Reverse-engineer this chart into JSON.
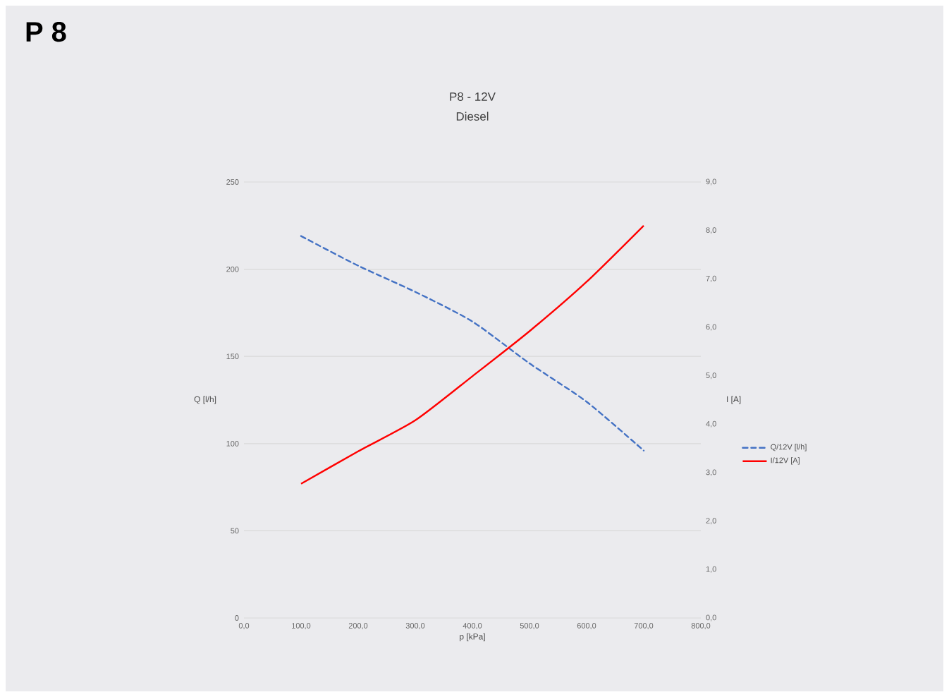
{
  "chart_data": {
    "type": "line",
    "title": "P8 - 12V",
    "subtitle": "Diesel",
    "annotations": [
      "P 8"
    ],
    "xlabel": "p [kPa]",
    "ylabel": "Q [l/h]",
    "y2label": "I [A]",
    "x": [
      100,
      200,
      300,
      400,
      500,
      600,
      700
    ],
    "series": [
      {
        "name": "Q/12V [l/h]",
        "color": "#4472c4",
        "line_style": "dashed",
        "values": [
          219,
          202,
          187,
          170,
          146,
          124,
          96
        ]
      },
      {
        "name": "I/12V [A]",
        "color": "#ff0000",
        "line_style": "solid",
        "axis": "y2",
        "values": [
          2.77,
          3.44,
          4.08,
          4.99,
          5.92,
          6.94,
          8.1
        ]
      }
    ],
    "xlim": [
      0,
      800
    ],
    "xticks": [
      {
        "value": 0,
        "label": "0,0"
      },
      {
        "value": 100,
        "label": "100,0"
      },
      {
        "value": 200,
        "label": "200,0"
      },
      {
        "value": 300,
        "label": "300,0"
      },
      {
        "value": 400,
        "label": "400,0"
      },
      {
        "value": 500,
        "label": "500,0"
      },
      {
        "value": 600,
        "label": "600,0"
      },
      {
        "value": 700,
        "label": "700,0"
      },
      {
        "value": 800,
        "label": "800,0"
      }
    ],
    "ylim": [
      0,
      250
    ],
    "yticks": [
      0,
      50,
      100,
      150,
      200,
      250
    ],
    "y2lim": [
      0,
      9
    ],
    "y2ticks": [
      {
        "value": 0,
        "label": "0,0"
      },
      {
        "value": 1,
        "label": "1,0"
      },
      {
        "value": 2,
        "label": "2,0"
      },
      {
        "value": 3,
        "label": "3,0"
      },
      {
        "value": 4,
        "label": "4,0"
      },
      {
        "value": 5,
        "label": "5,0"
      },
      {
        "value": 6,
        "label": "6,0"
      },
      {
        "value": 7,
        "label": "7,0"
      },
      {
        "value": 8,
        "label": "8,0"
      },
      {
        "value": 9,
        "label": "9,0"
      }
    ],
    "grid": "y",
    "legend": "right",
    "marker": "none"
  }
}
